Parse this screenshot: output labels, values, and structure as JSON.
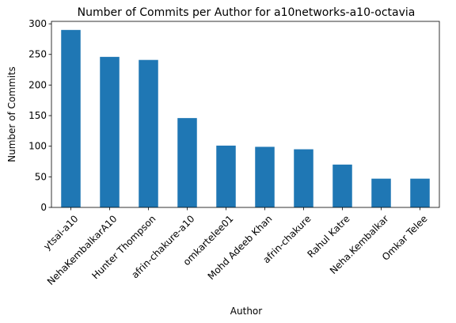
{
  "chart_data": {
    "type": "bar",
    "title": "Number of Commits per Author for a10networks-a10-octavia",
    "xlabel": "Author",
    "ylabel": "Number of Commits",
    "categories": [
      "ytsai-a10",
      "NehaKembalkarA10",
      "Hunter Thompson",
      "afrin-chakure-a10",
      "omkartelee01",
      "Mohd Adeeb Khan",
      "afrin-chakure",
      "Rahul Katre",
      "Neha.Kembalkar",
      "Omkar Telee"
    ],
    "values": [
      290,
      246,
      241,
      146,
      101,
      99,
      95,
      70,
      47,
      47
    ],
    "ylim": [
      0,
      304
    ],
    "yticks": [
      0,
      50,
      100,
      150,
      200,
      250,
      300
    ],
    "grid": false,
    "bar_color": "#1f77b4"
  }
}
